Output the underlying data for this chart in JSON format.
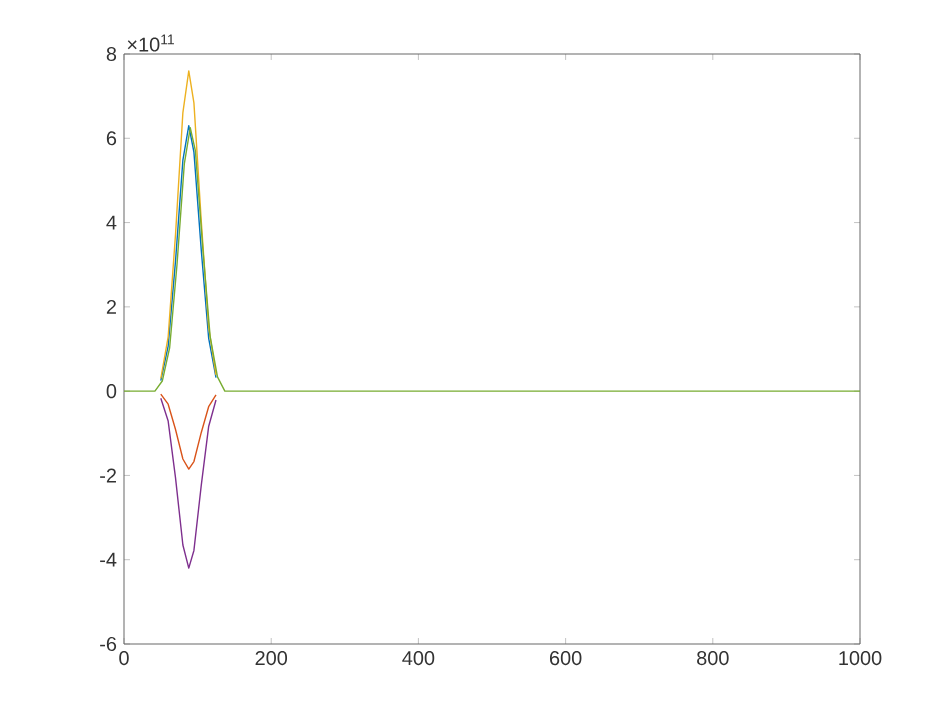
{
  "chart_data": {
    "type": "line",
    "series": [
      {
        "color": "#0072bd",
        "x": [
          50,
          60,
          70,
          80,
          88,
          95,
          105,
          115,
          125
        ],
        "values": [
          0.25,
          1.07,
          3.09,
          5.48,
          6.3,
          5.67,
          3.34,
          1.26,
          0.32
        ]
      },
      {
        "color": "#d95319",
        "x": [
          50,
          60,
          70,
          80,
          88,
          95,
          105,
          115,
          125
        ],
        "values": [
          -0.07,
          -0.31,
          -0.91,
          -1.61,
          -1.85,
          -1.67,
          -0.98,
          -0.37,
          -0.09
        ]
      },
      {
        "color": "#edb120",
        "x": [
          50,
          60,
          70,
          80,
          88,
          95,
          105,
          115,
          125
        ],
        "values": [
          0.3,
          1.29,
          3.72,
          6.61,
          7.6,
          6.84,
          4.03,
          1.52,
          0.38
        ]
      },
      {
        "color": "#7e2f8e",
        "x": [
          50,
          60,
          70,
          80,
          88,
          95,
          105,
          115,
          125
        ],
        "values": [
          -0.17,
          -0.71,
          -2.06,
          -3.65,
          -4.2,
          -3.78,
          -2.23,
          -0.84,
          -0.21
        ]
      },
      {
        "color": "#77ac30",
        "x": [
          0,
          42,
          52,
          62,
          72,
          82,
          90,
          97,
          107,
          117,
          127,
          137,
          1000
        ],
        "values": [
          0,
          0,
          0.24,
          1.03,
          3.0,
          5.4,
          6.25,
          5.7,
          3.4,
          1.3,
          0.34,
          0,
          0
        ]
      }
    ],
    "xlim": [
      0,
      1000
    ],
    "ylim": [
      -6,
      8
    ],
    "xticks": [
      0,
      200,
      400,
      600,
      800,
      1000
    ],
    "yticks": [
      -6,
      -4,
      -2,
      0,
      2,
      4,
      6,
      8
    ],
    "annotations": [
      "×10$^{11}$"
    ]
  }
}
